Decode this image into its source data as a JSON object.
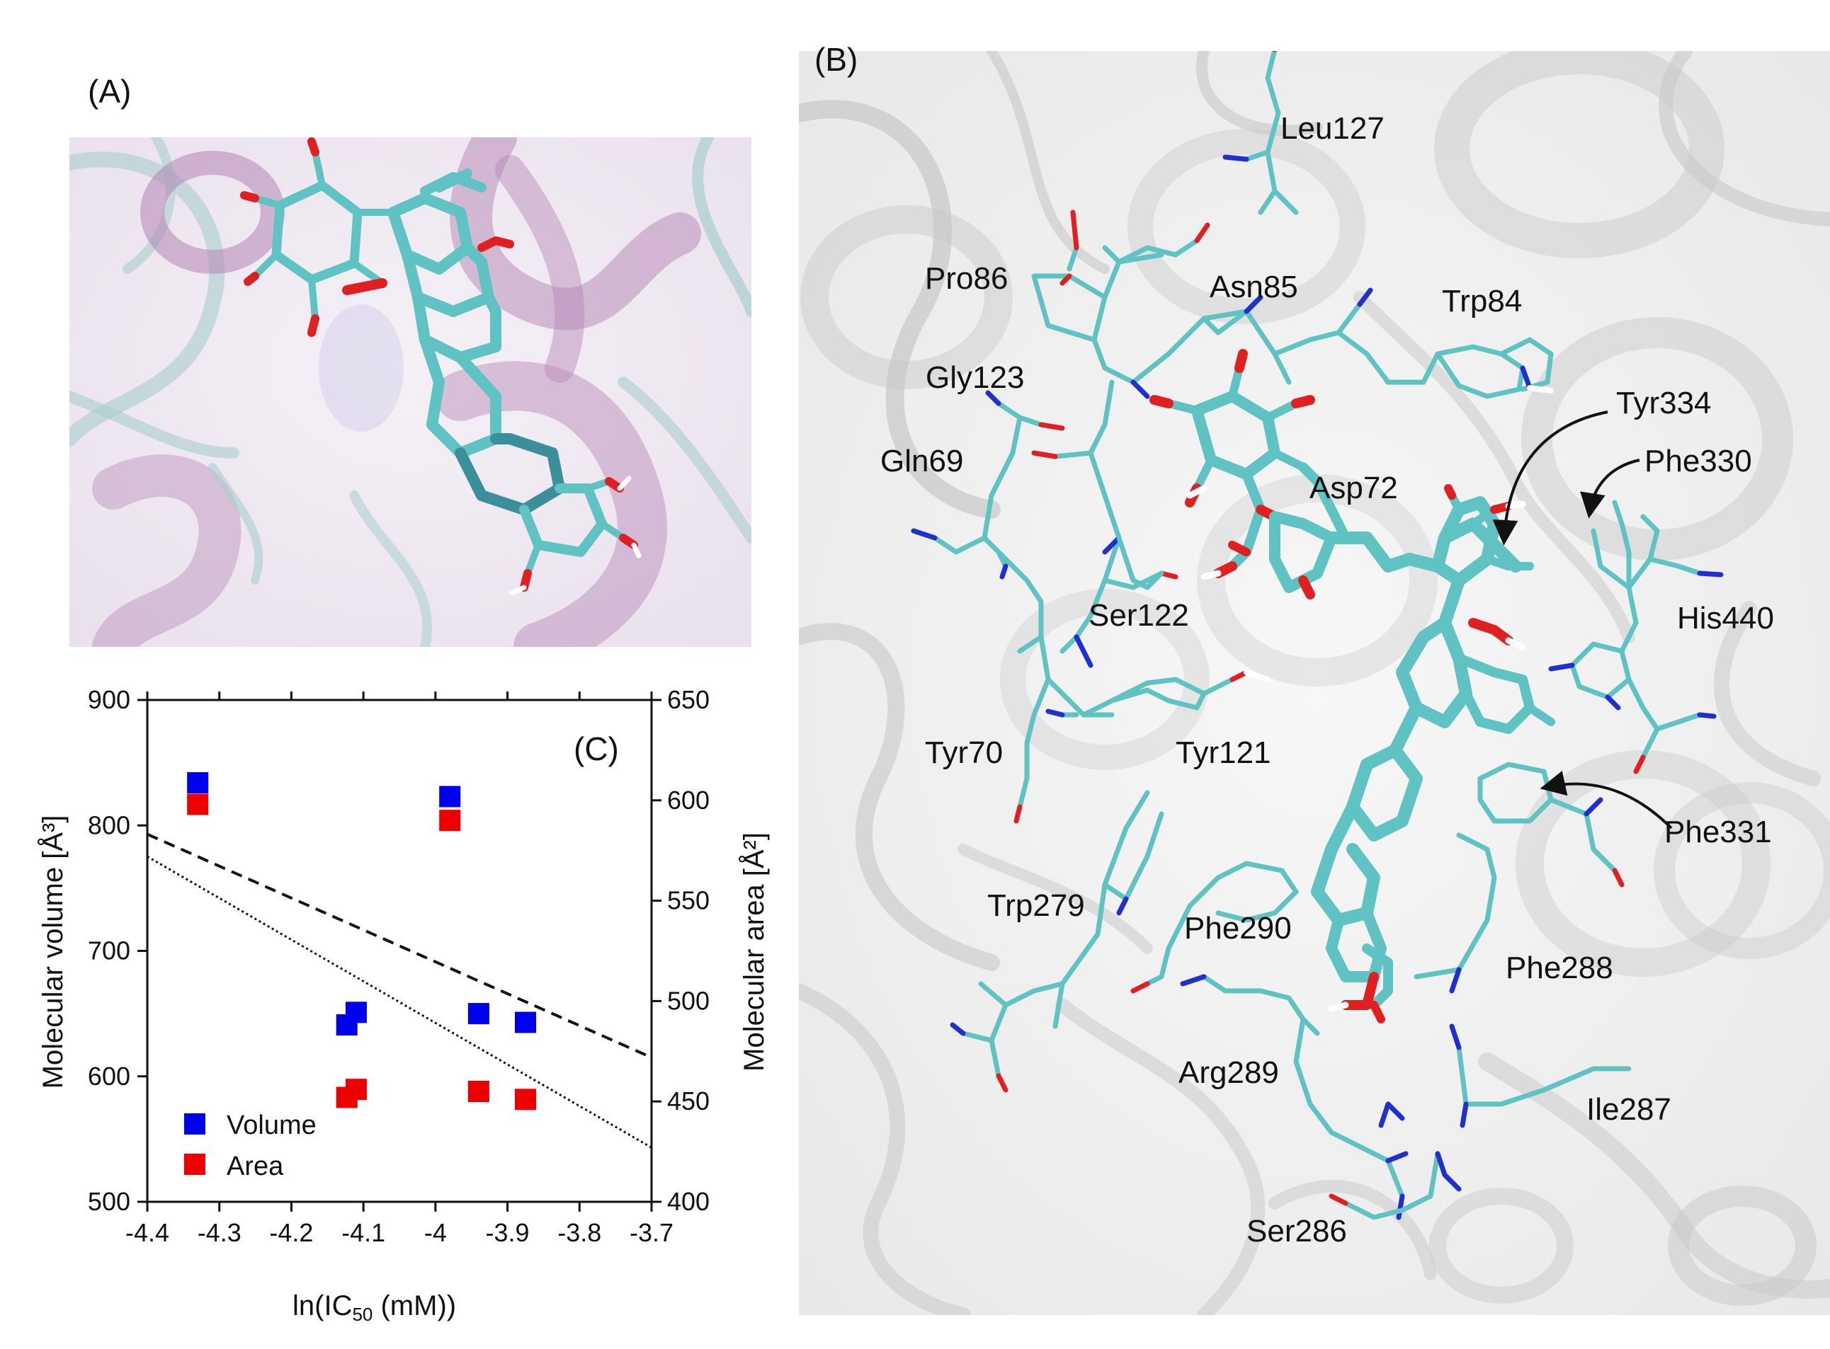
{
  "panels": {
    "a_label": "(A)",
    "b_label": "(B)",
    "c_label": "(C)"
  },
  "residues": {
    "leu127": "Leu127",
    "pro86": "Pro86",
    "asn85": "Asn85",
    "trp84": "Trp84",
    "gly123": "Gly123",
    "tyr334": "Tyr334",
    "gln69": "Gln69",
    "phe330": "Phe330",
    "asp72": "Asp72",
    "ser122": "Ser122",
    "his440": "His440",
    "tyr70": "Tyr70",
    "tyr121": "Tyr121",
    "phe331": "Phe331",
    "trp279": "Trp279",
    "phe290": "Phe290",
    "phe288": "Phe288",
    "arg289": "Arg289",
    "ile287": "Ile287",
    "ser286": "Ser286"
  },
  "colors": {
    "ligand": "#5fc3c3",
    "oxygen": "#e02020",
    "nitrogen": "#2030d0",
    "hydrogen": "#ffffff",
    "helix_a": "#b585b5",
    "ribbon_b": "#c8c8c8",
    "volume_series": "#0000ee",
    "area_series": "#ee0000"
  },
  "chart_data": {
    "type": "scatter",
    "xlabel": "ln(IC50 (mM))",
    "xlabel_main": "ln(IC",
    "xlabel_sub": "50",
    "xlabel_tail": " (mM))",
    "ylabel_left": "Molecular volume [Å³]",
    "ylabel_right": "Molecular area [Å²]",
    "xlim": [
      -4.4,
      -3.7
    ],
    "ylim_left": [
      500,
      900
    ],
    "ylim_right": [
      400,
      650
    ],
    "xticks": [
      "-4.4",
      "-4.3",
      "-4.2",
      "-4.1",
      "-4",
      "-3.9",
      "-3.8",
      "-3.7"
    ],
    "yticks_left": [
      "500",
      "600",
      "700",
      "800",
      "900"
    ],
    "yticks_right": [
      "400",
      "450",
      "500",
      "550",
      "600",
      "650"
    ],
    "legend_position": "bottom-left",
    "series": [
      {
        "name": "Volume",
        "axis": "left",
        "color": "#0000ee",
        "points": [
          [
            -4.33,
            834
          ],
          [
            -3.98,
            823
          ],
          [
            -4.123,
            641
          ],
          [
            -4.11,
            651
          ],
          [
            -3.94,
            650
          ],
          [
            -3.875,
            643
          ]
        ],
        "trend": [
          [
            -4.4,
            793
          ],
          [
            -3.7,
            615
          ]
        ],
        "trend_style": "dashed"
      },
      {
        "name": "Area",
        "axis": "right",
        "color": "#ee0000",
        "points": [
          [
            -4.33,
            598
          ],
          [
            -3.98,
            590
          ],
          [
            -4.123,
            452
          ],
          [
            -4.11,
            456
          ],
          [
            -3.94,
            455
          ],
          [
            -3.875,
            451
          ]
        ],
        "trend": [
          [
            -4.4,
            572
          ],
          [
            -3.7,
            427
          ]
        ],
        "trend_style": "dotted"
      }
    ]
  }
}
